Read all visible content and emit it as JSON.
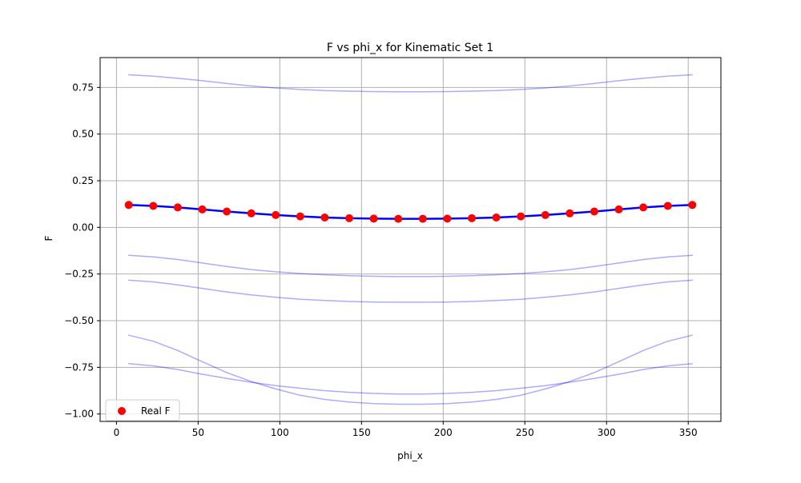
{
  "chart_data": {
    "type": "line",
    "title": "F vs phi_x for Kinematic Set 1",
    "xlabel": "phi_x",
    "ylabel": "F",
    "xlim": [
      -10,
      370
    ],
    "ylim": [
      -1.04,
      0.91
    ],
    "xticks": [
      0,
      50,
      100,
      150,
      200,
      250,
      300,
      350
    ],
    "xtick_labels": [
      "0",
      "50",
      "100",
      "150",
      "200",
      "250",
      "300",
      "350"
    ],
    "yticks": [
      -1.0,
      -0.75,
      -0.5,
      -0.25,
      0.0,
      0.25,
      0.5,
      0.75
    ],
    "ytick_labels": [
      "−1.00",
      "−0.75",
      "−0.50",
      "−0.25",
      "0.00",
      "0.25",
      "0.50",
      "0.75"
    ],
    "grid": true,
    "legend": {
      "placement": "lower-left",
      "entries": [
        "Real F"
      ]
    },
    "x": [
      7.5,
      22.5,
      37.5,
      52.5,
      67.5,
      82.5,
      97.5,
      112.5,
      127.5,
      142.5,
      157.5,
      172.5,
      187.5,
      202.5,
      217.5,
      232.5,
      247.5,
      262.5,
      277.5,
      292.5,
      307.5,
      322.5,
      337.5,
      352.5
    ],
    "series": [
      {
        "name": "Real F",
        "style": "scatter",
        "color": "#ff0000",
        "values": [
          0.12,
          0.115,
          0.107,
          0.096,
          0.085,
          0.075,
          0.066,
          0.059,
          0.053,
          0.049,
          0.047,
          0.046,
          0.046,
          0.047,
          0.049,
          0.053,
          0.059,
          0.066,
          0.075,
          0.085,
          0.096,
          0.107,
          0.115,
          0.12
        ]
      },
      {
        "style": "line",
        "color": "#0000ff",
        "opacity": 1.0,
        "width": 2.5,
        "values": [
          0.12,
          0.115,
          0.107,
          0.096,
          0.085,
          0.075,
          0.066,
          0.059,
          0.053,
          0.049,
          0.047,
          0.046,
          0.046,
          0.047,
          0.049,
          0.053,
          0.059,
          0.066,
          0.075,
          0.085,
          0.096,
          0.107,
          0.115,
          0.12
        ]
      },
      {
        "style": "line",
        "color": "#0000ff",
        "opacity": 0.33,
        "width": 1.5,
        "values": [
          0.818,
          0.81,
          0.799,
          0.786,
          0.771,
          0.758,
          0.747,
          0.739,
          0.733,
          0.73,
          0.728,
          0.727,
          0.727,
          0.728,
          0.73,
          0.733,
          0.739,
          0.747,
          0.758,
          0.771,
          0.786,
          0.799,
          0.81,
          0.818
        ]
      },
      {
        "style": "line",
        "color": "#0000ff",
        "opacity": 0.33,
        "width": 1.5,
        "values": [
          -0.15,
          -0.158,
          -0.172,
          -0.191,
          -0.21,
          -0.226,
          -0.238,
          -0.247,
          -0.254,
          -0.259,
          -0.262,
          -0.264,
          -0.264,
          -0.262,
          -0.259,
          -0.254,
          -0.247,
          -0.238,
          -0.226,
          -0.21,
          -0.191,
          -0.172,
          -0.158,
          -0.15
        ]
      },
      {
        "style": "line",
        "color": "#0000ff",
        "opacity": 0.33,
        "width": 1.5,
        "values": [
          -0.283,
          -0.292,
          -0.308,
          -0.327,
          -0.346,
          -0.362,
          -0.375,
          -0.385,
          -0.392,
          -0.397,
          -0.4,
          -0.401,
          -0.401,
          -0.4,
          -0.397,
          -0.392,
          -0.385,
          -0.375,
          -0.362,
          -0.346,
          -0.327,
          -0.308,
          -0.292,
          -0.283
        ]
      },
      {
        "style": "line",
        "color": "#0000ff",
        "opacity": 0.33,
        "width": 1.5,
        "values": [
          -0.578,
          -0.61,
          -0.66,
          -0.72,
          -0.778,
          -0.826,
          -0.866,
          -0.9,
          -0.922,
          -0.936,
          -0.945,
          -0.948,
          -0.948,
          -0.945,
          -0.936,
          -0.922,
          -0.9,
          -0.866,
          -0.826,
          -0.778,
          -0.72,
          -0.66,
          -0.61,
          -0.578
        ]
      },
      {
        "style": "line",
        "color": "#0000ff",
        "opacity": 0.33,
        "width": 1.5,
        "values": [
          -0.73,
          -0.742,
          -0.762,
          -0.787,
          -0.81,
          -0.83,
          -0.848,
          -0.862,
          -0.875,
          -0.884,
          -0.89,
          -0.893,
          -0.893,
          -0.89,
          -0.884,
          -0.875,
          -0.862,
          -0.848,
          -0.83,
          -0.81,
          -0.787,
          -0.762,
          -0.742,
          -0.73
        ]
      }
    ]
  }
}
